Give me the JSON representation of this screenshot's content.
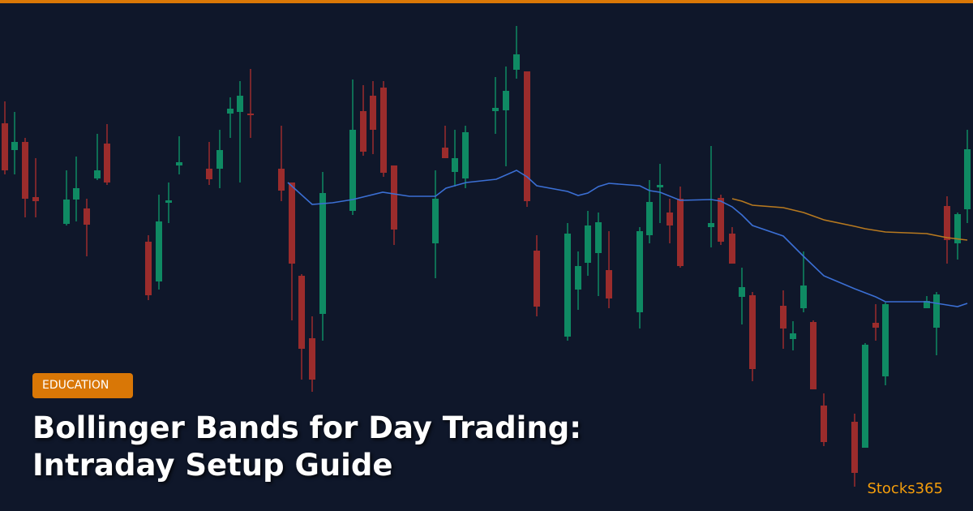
{
  "badge": "EDUCATION",
  "title": {
    "lines": [
      "Bollinger Bands for Day Trading:",
      "Intraday Setup Guide"
    ]
  },
  "brand": "Stocks365"
}
